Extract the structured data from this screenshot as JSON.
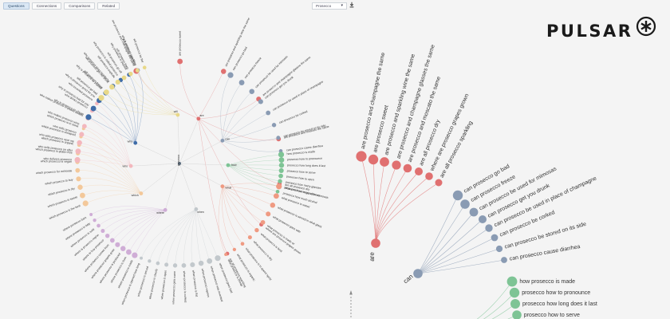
{
  "tabs": [
    {
      "label": "Questions",
      "active": true
    },
    {
      "label": "Connections",
      "active": false
    },
    {
      "label": "Comparisons",
      "active": false
    },
    {
      "label": "Related",
      "active": false
    }
  ],
  "dropdown": {
    "selected": "Prosecco"
  },
  "icons": {
    "dropdown": "chevron-down-icon",
    "download": "download-icon",
    "logo": "asterisk-star-icon"
  },
  "logo": {
    "text": "PULSAR"
  },
  "wheel": {
    "center_label": "prosecco",
    "groups": [
      {
        "hub": "are",
        "color": "#e07070",
        "items": [
          "are prosecco and champagne the same",
          "are prosecco sweet",
          "are prosecco and sparkling wine the same",
          "are prosecco and champagne glasses the same",
          "are prosecco and moscato the same",
          "are all prosecco dry",
          "where are prosecco grapes grown",
          "are all prosecco sparkling"
        ]
      },
      {
        "hub": "can",
        "color": "#8a9bb3",
        "items": [
          "can prosecco go bad",
          "can prosecco freeze",
          "can prosecco be used for mimosas",
          "can prosecco get you drunk",
          "can prosecco be used in place of champagne",
          "can prosecco be corked",
          "can prosecco be stored on its side",
          "can prosecco cause diarrhea"
        ]
      },
      {
        "hub": "how",
        "color": "#7ec495",
        "items": [
          "how prosecco is made",
          "prosecco how to pronounce",
          "prosecco how long does it last",
          "prosecco how to serve",
          "prosecco how to open",
          "prosecco how many glasses",
          "prosecco how many calories",
          "prosecco how much alcohol"
        ]
      },
      {
        "hub": "what",
        "color": "#ef9a82",
        "items": [
          "what prosecco is good for mimosas",
          "what prosecco is sweet",
          "what prosecco is served in what glass",
          "what prosecco goes with",
          "what prosecco is made of",
          "what prosecco is best",
          "what prosecco is dry",
          "what prosecco is in aperol spritz",
          "what prosecco is organic",
          "what prosecco is cheap"
        ]
      },
      {
        "hub": "when",
        "color": "#c2c8cc",
        "items": [
          "when prosecco goes bad",
          "when prosecco was invented",
          "when prosecco expires",
          "when prosecco is flat",
          "when prosecco is corked",
          "when prosecco gets warm",
          "when prosecco is open",
          "when prosecco is cloudy",
          "when prosecco is served",
          "when prosecco is opened how long"
        ]
      },
      {
        "hub": "where",
        "color": "#cfadd6",
        "items": [
          "where prosecco is made",
          "where prosecco is from",
          "where prosecco is produced",
          "where prosecco grapes grow",
          "where prosecco comes from",
          "where to buy prosecco",
          "where is prosecco region",
          "where prosecco is sold",
          "where prosecco in italy",
          "where prosecco bars"
        ]
      },
      {
        "hub": "which",
        "color": "#f3c89a",
        "items": [
          "which prosecco is the best",
          "which prosecco is sweet",
          "which prosecco is dry",
          "which prosecco to buy",
          "which prosecco for mimosas",
          "which prosecco is vegan",
          "which prosecco is gluten free",
          "which prosecco is organic",
          "which prosecco is cheapest",
          "which prosecco is in stock"
        ]
      },
      {
        "hub": "who",
        "color": "#f3b7bd",
        "items": [
          "who delivers prosecco",
          "who sells prosecco on offer",
          "who sells prosecco near me",
          "who sells prosecco",
          "who makes prosecco wine",
          "who makes prosecco in plastic bottles",
          "who drinks prosecco",
          "who invented prosecco"
        ]
      },
      {
        "hub": "why",
        "color": "#3f6ca8",
        "items": [
          "why is prosecco so cheap",
          "why is prosecco bad for you",
          "why is prosecco good for you",
          "why is prosecco so popular",
          "why prosecco gives headache",
          "why prosecco is called prosecco",
          "why prosecco is popular",
          "why is prosecco sparkling"
        ]
      },
      {
        "hub": "will",
        "color": "#e8d888",
        "items": [
          "will prosecco go bad",
          "will prosecco freeze",
          "will prosecco get me drunk",
          "will prosecco explode",
          "will prosecco go off",
          "will prosecco keep",
          "will prosecco stay fizzy",
          "will prosecco be flat"
        ]
      }
    ]
  }
}
